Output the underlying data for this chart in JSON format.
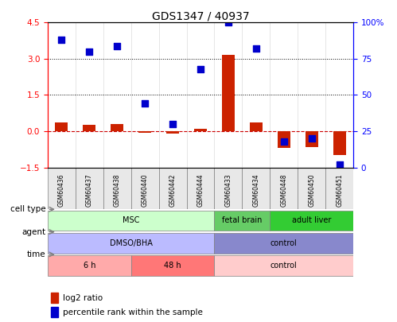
{
  "title": "GDS1347 / 40937",
  "samples": [
    "GSM60436",
    "GSM60437",
    "GSM60438",
    "GSM60440",
    "GSM60442",
    "GSM60444",
    "GSM60433",
    "GSM60434",
    "GSM60448",
    "GSM60450",
    "GSM60451"
  ],
  "log2_ratio": [
    0.35,
    0.25,
    0.3,
    -0.05,
    -0.1,
    0.1,
    3.15,
    0.35,
    -0.7,
    -0.65,
    -1.0
  ],
  "percentile_rank": [
    88,
    80,
    84,
    44,
    30,
    68,
    100,
    82,
    18,
    20,
    2
  ],
  "ylim": [
    -1.5,
    4.5
  ],
  "y2lim": [
    0,
    100
  ],
  "yticks_left": [
    -1.5,
    0,
    1.5,
    3.0,
    4.5
  ],
  "yticks_right": [
    0,
    25,
    50,
    75,
    100
  ],
  "cell_type_groups": [
    {
      "label": "MSC",
      "start": 0,
      "end": 6,
      "color": "#ccffcc"
    },
    {
      "label": "fetal brain",
      "start": 6,
      "end": 8,
      "color": "#66cc66"
    },
    {
      "label": "adult liver",
      "start": 8,
      "end": 11,
      "color": "#33cc33"
    }
  ],
  "agent_groups": [
    {
      "label": "DMSO/BHA",
      "start": 0,
      "end": 6,
      "color": "#bbbbff"
    },
    {
      "label": "control",
      "start": 6,
      "end": 11,
      "color": "#8888cc"
    }
  ],
  "time_groups": [
    {
      "label": "6 h",
      "start": 0,
      "end": 3,
      "color": "#ffaaaa"
    },
    {
      "label": "48 h",
      "start": 3,
      "end": 6,
      "color": "#ff7777"
    },
    {
      "label": "control",
      "start": 6,
      "end": 11,
      "color": "#ffcccc"
    }
  ],
  "bar_color": "#cc2200",
  "dot_color": "#0000cc",
  "zero_line_color": "#cc0000",
  "bar_width": 0.45,
  "dot_size": 30
}
